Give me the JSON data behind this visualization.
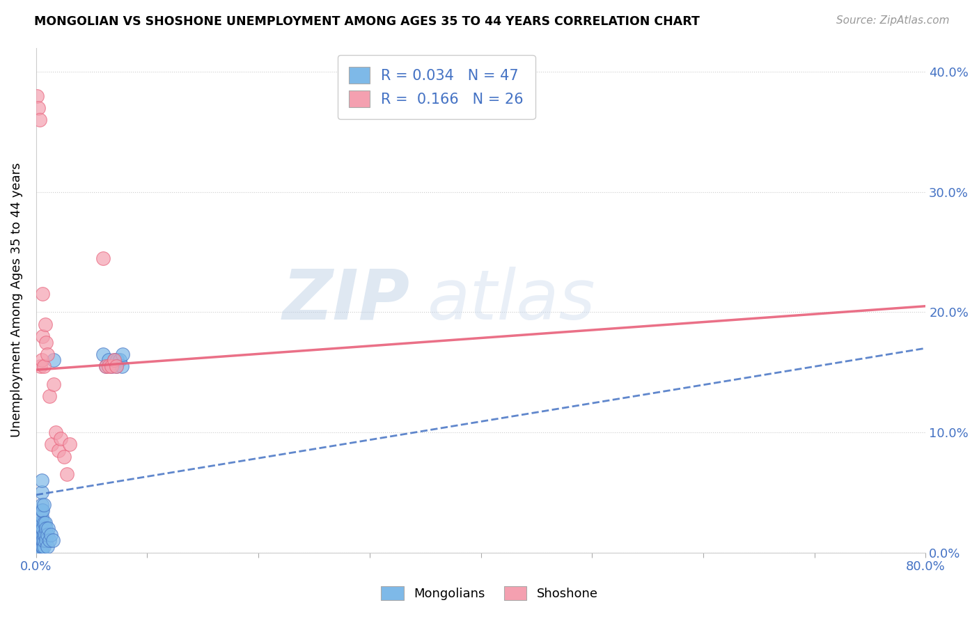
{
  "title": "MONGOLIAN VS SHOSHONE UNEMPLOYMENT AMONG AGES 35 TO 44 YEARS CORRELATION CHART",
  "source": "Source: ZipAtlas.com",
  "ylabel": "Unemployment Among Ages 35 to 44 years",
  "xlim": [
    0.0,
    0.8
  ],
  "ylim": [
    0.0,
    0.42
  ],
  "x_ticks": [
    0.0,
    0.1,
    0.2,
    0.3,
    0.4,
    0.5,
    0.6,
    0.7,
    0.8
  ],
  "y_ticks": [
    0.0,
    0.1,
    0.2,
    0.3,
    0.4
  ],
  "y_ticks_right_labels": [
    "0.0%",
    "10.0%",
    "20.0%",
    "30.0%",
    "40.0%"
  ],
  "legend_R_mongolian": "0.034",
  "legend_N_mongolian": "47",
  "legend_R_shoshone": "0.166",
  "legend_N_shoshone": "26",
  "color_mongolian": "#7EB9E8",
  "color_mongolian_line": "#4472C4",
  "color_shoshone": "#F4A0B0",
  "color_shoshone_line": "#E8607A",
  "watermark_zip": "ZIP",
  "watermark_atlas": "atlas",
  "mongolian_line_x": [
    0.0,
    0.8
  ],
  "mongolian_line_y": [
    0.048,
    0.17
  ],
  "shoshone_line_x": [
    0.0,
    0.8
  ],
  "shoshone_line_y": [
    0.152,
    0.205
  ],
  "mongolian_x": [
    0.003,
    0.003,
    0.003,
    0.004,
    0.004,
    0.004,
    0.005,
    0.005,
    0.005,
    0.005,
    0.005,
    0.005,
    0.005,
    0.005,
    0.005,
    0.005,
    0.005,
    0.006,
    0.006,
    0.006,
    0.006,
    0.007,
    0.007,
    0.007,
    0.007,
    0.007,
    0.008,
    0.008,
    0.009,
    0.009,
    0.01,
    0.01,
    0.011,
    0.012,
    0.013,
    0.015,
    0.016,
    0.06,
    0.063,
    0.065,
    0.068,
    0.07,
    0.072,
    0.073,
    0.075,
    0.077,
    0.078
  ],
  "mongolian_y": [
    0.005,
    0.015,
    0.025,
    0.005,
    0.01,
    0.02,
    0.0,
    0.005,
    0.01,
    0.015,
    0.02,
    0.025,
    0.03,
    0.035,
    0.04,
    0.05,
    0.06,
    0.005,
    0.01,
    0.02,
    0.035,
    0.005,
    0.01,
    0.015,
    0.025,
    0.04,
    0.015,
    0.025,
    0.01,
    0.02,
    0.005,
    0.015,
    0.02,
    0.01,
    0.015,
    0.01,
    0.16,
    0.165,
    0.155,
    0.16,
    0.155,
    0.16,
    0.155,
    0.16,
    0.16,
    0.155,
    0.165
  ],
  "shoshone_x": [
    0.001,
    0.002,
    0.003,
    0.004,
    0.005,
    0.006,
    0.006,
    0.007,
    0.008,
    0.009,
    0.01,
    0.012,
    0.014,
    0.016,
    0.018,
    0.02,
    0.022,
    0.025,
    0.028,
    0.03,
    0.06,
    0.063,
    0.065,
    0.068,
    0.07,
    0.072
  ],
  "shoshone_y": [
    0.38,
    0.37,
    0.36,
    0.155,
    0.16,
    0.18,
    0.215,
    0.155,
    0.19,
    0.175,
    0.165,
    0.13,
    0.09,
    0.14,
    0.1,
    0.085,
    0.095,
    0.08,
    0.065,
    0.09,
    0.245,
    0.155,
    0.155,
    0.155,
    0.16,
    0.155
  ],
  "background_color": "#FFFFFF",
  "grid_color": "#CCCCCC"
}
